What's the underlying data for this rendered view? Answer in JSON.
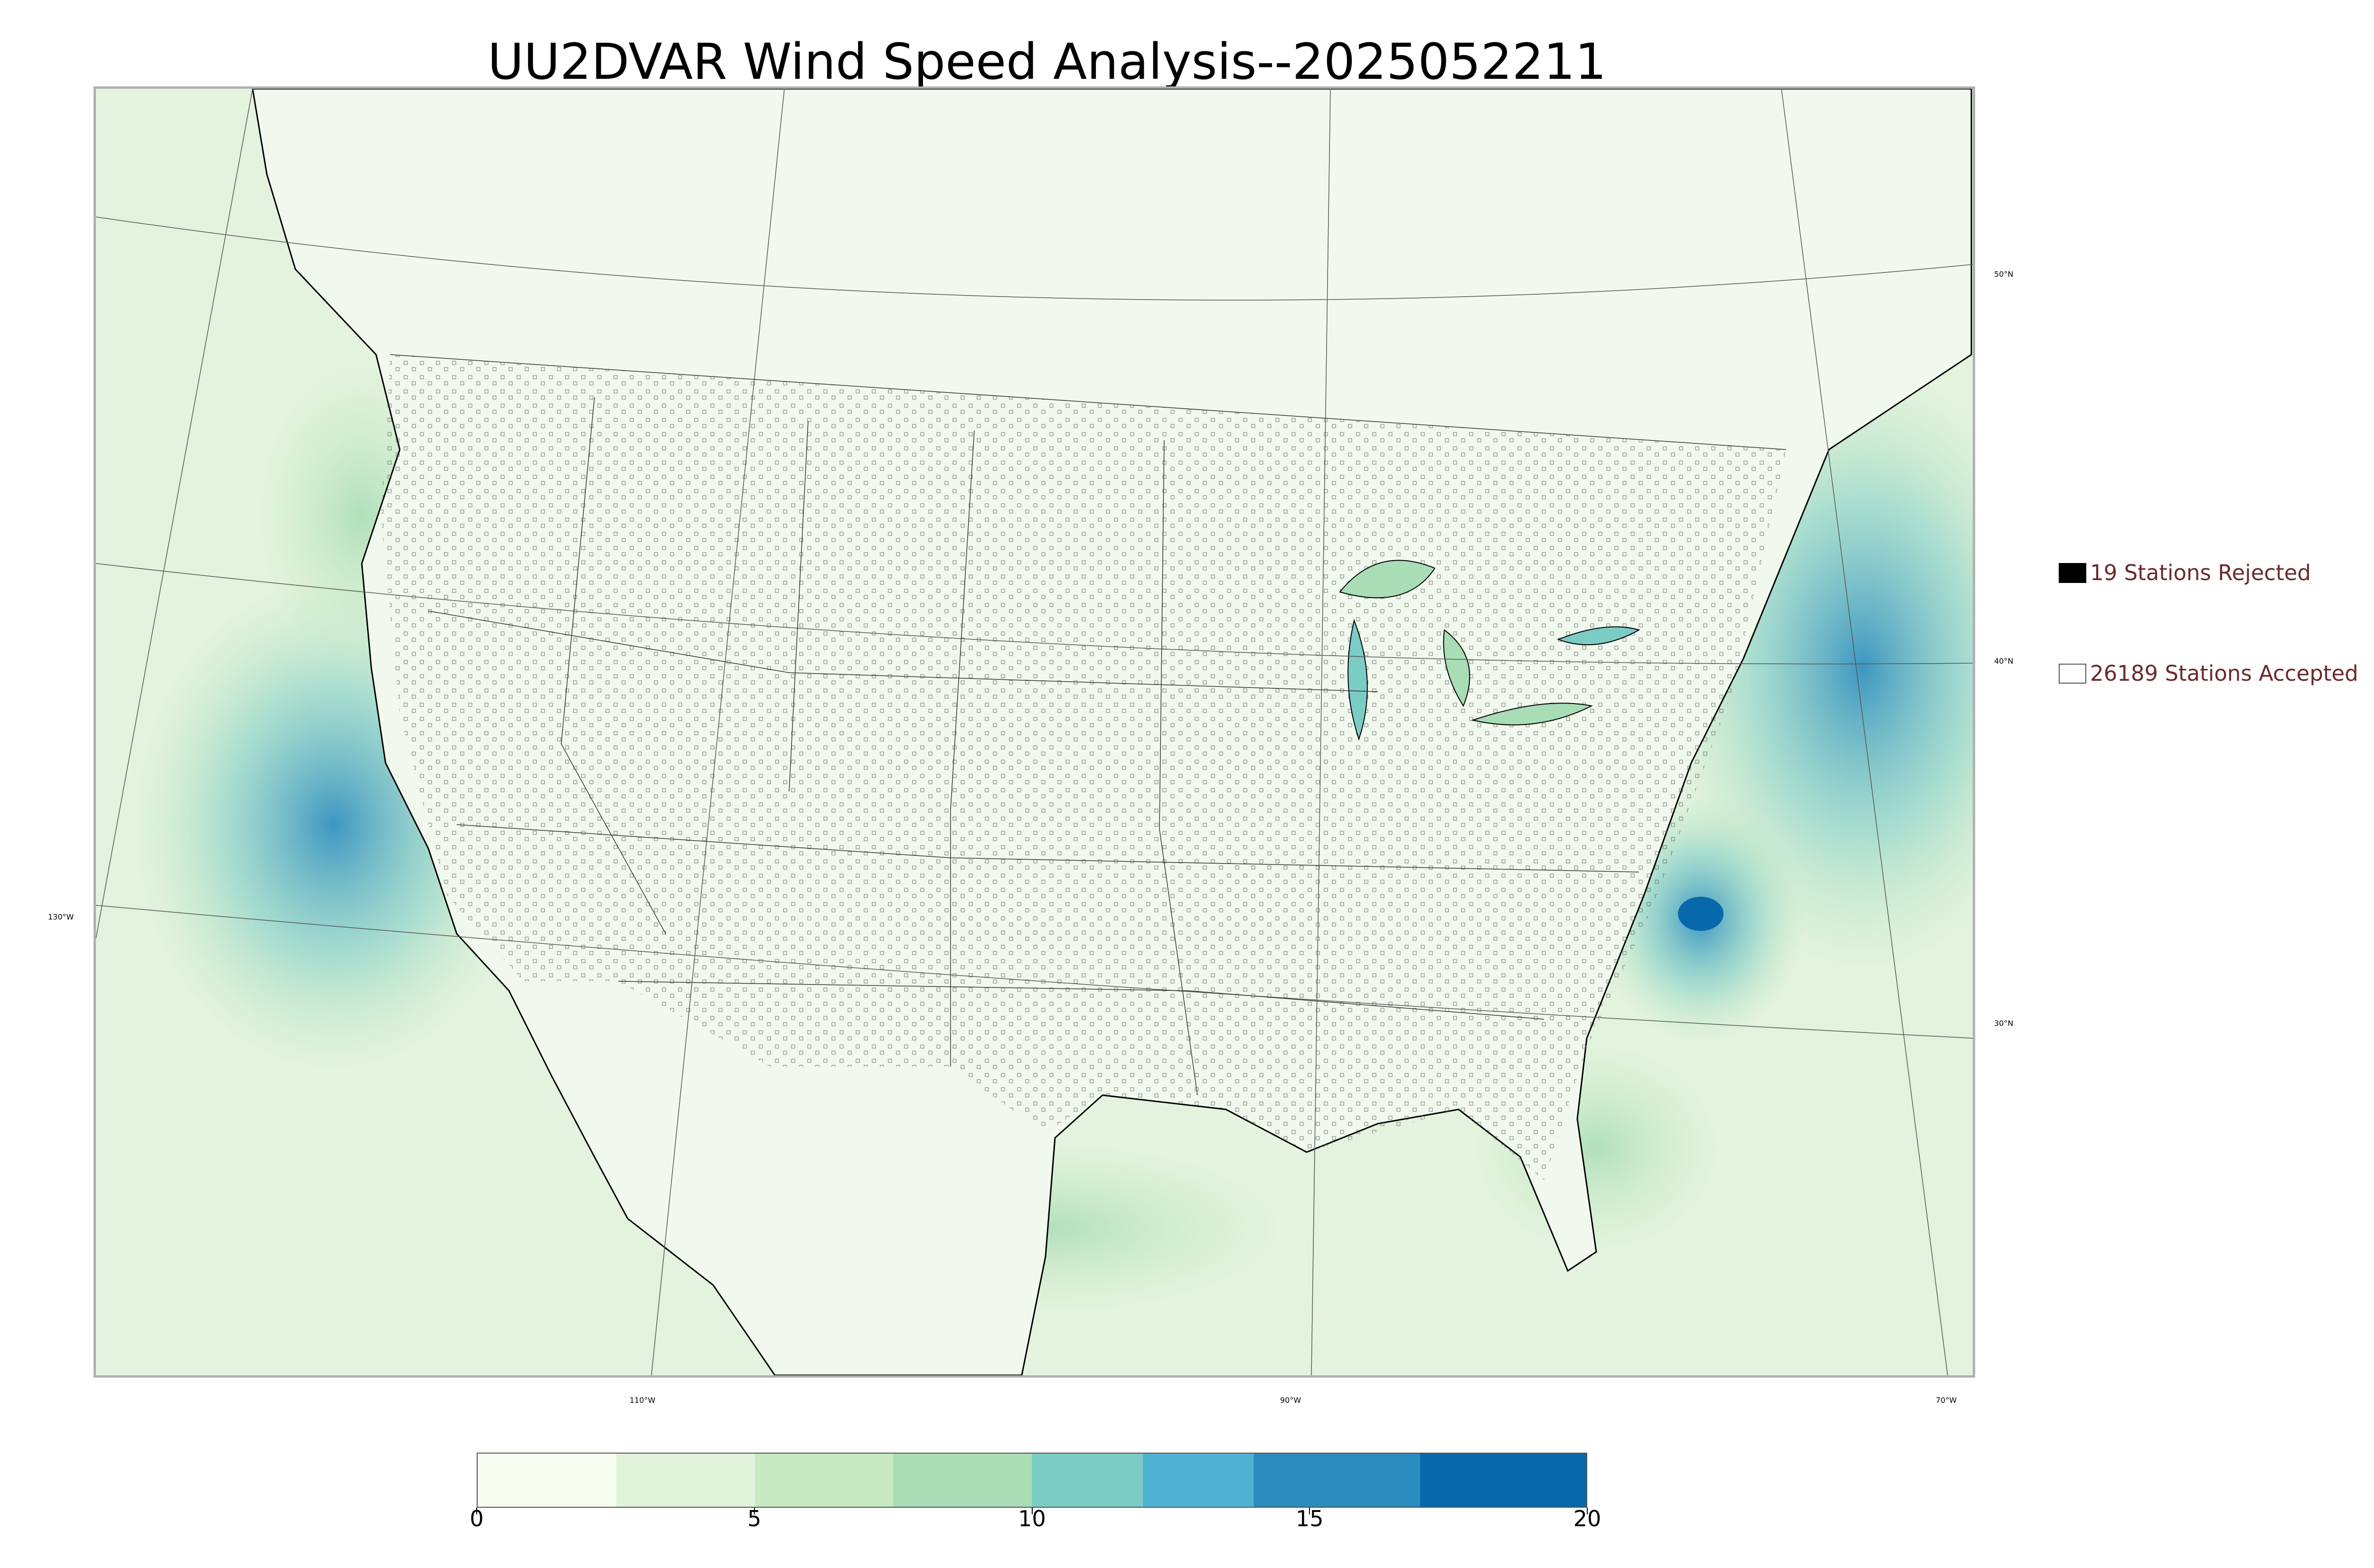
{
  "title": "UU2DVAR Wind Speed Analysis--2025052211",
  "map": {
    "projection": "lambert-conformal",
    "colormap": "GnBu",
    "meridian_labels": [
      "130°W",
      "110°W",
      "90°W",
      "70°W"
    ],
    "parallel_labels": [
      "50°N",
      "40°N",
      "30°N"
    ],
    "colors": {
      "low": "#f7fcf0",
      "mid": "#b6e3b6",
      "high": "#08589e",
      "coastline": "#000000",
      "border": "#333333",
      "grid": "#555555"
    }
  },
  "legend": {
    "rejected_label": "19 Stations Rejected",
    "accepted_label": "26189 Stations Accepted",
    "rejected_count": 19,
    "accepted_count": 26189
  },
  "colorbar": {
    "min": 0,
    "max": 20,
    "tick_labels": [
      "0",
      "5",
      "10",
      "15",
      "20"
    ],
    "stops": [
      {
        "value": 0,
        "color": "#f7fcf0"
      },
      {
        "value": 2.5,
        "color": "#e0f3db"
      },
      {
        "value": 5,
        "color": "#c6e9c2"
      },
      {
        "value": 7.5,
        "color": "#a8ddb5"
      },
      {
        "value": 10,
        "color": "#7bccc4"
      },
      {
        "value": 12,
        "color": "#4eb3d3"
      },
      {
        "value": 14,
        "color": "#2b8cbe"
      },
      {
        "value": 17,
        "color": "#0868ac"
      },
      {
        "value": 20,
        "color": "#115a8f"
      }
    ]
  }
}
